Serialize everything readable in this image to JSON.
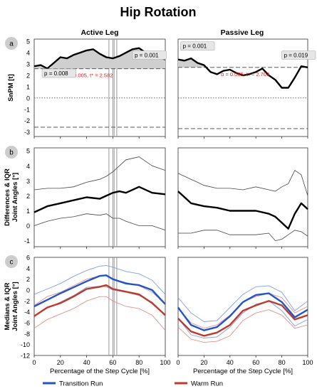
{
  "title": "Hip Rotation",
  "columns": [
    "Active Leg",
    "Passive Leg"
  ],
  "row_badges": [
    "a",
    "b",
    "c"
  ],
  "legend": [
    {
      "label": "Transition Run",
      "color": "#2255cc"
    },
    {
      "label": "Warm Run",
      "color": "#c0392b"
    }
  ],
  "colors": {
    "transition": "#2255cc",
    "transition_light": "#7f9ee8",
    "warm": "#c0392b",
    "warm_light": "#e39189",
    "badge": "#cccccc",
    "shade": "#cfcfcf"
  },
  "x_axis": {
    "label": "Percentage of the Step Cycle [%]",
    "ticks": [
      "0",
      "20",
      "40",
      "60",
      "80",
      "100"
    ],
    "range": [
      0,
      100
    ]
  },
  "chart_data": [
    {
      "row": "a",
      "type": "line",
      "ylabel": "SnPM [t]",
      "ylim": [
        -3.4,
        5.2
      ],
      "yticks": [
        "-3",
        "-2",
        "-1",
        "0",
        "1",
        "2",
        "3",
        "4",
        "5"
      ],
      "ytick_values": [
        -3,
        -2,
        -1,
        0,
        1,
        2,
        3,
        4,
        5
      ],
      "panels": [
        {
          "leg": "Active Leg",
          "threshold": 2.582,
          "threshold_label": "α = 0.005, t* = 2.582",
          "x": [
            0,
            5,
            10,
            15,
            20,
            25,
            30,
            35,
            40,
            45,
            50,
            55,
            60,
            65,
            70,
            75,
            80,
            85,
            90,
            95,
            100
          ],
          "snpm": [
            2.8,
            2.9,
            2.6,
            3.1,
            3.6,
            3.5,
            3.8,
            4.0,
            4.2,
            4.3,
            3.9,
            3.6,
            3.5,
            3.7,
            4.0,
            4.3,
            4.4,
            4.0,
            3.8,
            3.6,
            3.4
          ],
          "clusters": [
            {
              "x0": 0,
              "x1": 9,
              "p_label": "p = 0.008"
            },
            {
              "x0": 12,
              "x1": 100,
              "p_label": "p = 0.001"
            }
          ],
          "vlines": [
            57,
            60,
            61,
            63
          ]
        },
        {
          "leg": "Passive Leg",
          "threshold": 2.703,
          "threshold_label": "α = 0.005, t* = 2.703",
          "x": [
            0,
            5,
            10,
            15,
            20,
            25,
            30,
            35,
            40,
            45,
            50,
            55,
            60,
            65,
            70,
            75,
            80,
            85,
            90,
            95,
            100
          ],
          "snpm": [
            3.4,
            3.3,
            3.5,
            3.1,
            2.9,
            2.3,
            2.1,
            2.4,
            2.5,
            2.2,
            2.0,
            2.1,
            2.3,
            2.6,
            2.0,
            1.6,
            0.9,
            0.9,
            1.8,
            2.8,
            2.7
          ],
          "clusters": [
            {
              "x0": 0,
              "x1": 23,
              "p_label": "p = 0.001"
            },
            {
              "x0": 93,
              "x1": 100,
              "p_label": "p = 0.019"
            }
          ],
          "vlines": []
        }
      ]
    },
    {
      "row": "b",
      "type": "line",
      "ylabel": "Differences & IQR\nJoint Angles [°]",
      "ylim": [
        -1.4,
        5.2
      ],
      "yticks": [
        "-1",
        "0",
        "1",
        "2",
        "3",
        "4",
        "5"
      ],
      "ytick_values": [
        -1,
        0,
        1,
        2,
        3,
        4,
        5
      ],
      "panels": [
        {
          "leg": "Active Leg",
          "x": [
            0,
            10,
            20,
            30,
            40,
            50,
            55,
            60,
            65,
            70,
            80,
            90,
            100
          ],
          "median": [
            0.9,
            1.3,
            1.5,
            1.7,
            1.9,
            1.8,
            2.0,
            2.2,
            2.3,
            2.2,
            2.6,
            2.2,
            2.1
          ],
          "q1": [
            0.0,
            0.3,
            0.5,
            0.6,
            0.8,
            0.7,
            0.8,
            0.5,
            0.5,
            0.3,
            0.0,
            0.0,
            -0.3
          ],
          "q3": [
            2.4,
            2.5,
            2.5,
            2.6,
            2.9,
            3.1,
            3.3,
            3.6,
            4.0,
            4.4,
            4.6,
            4.0,
            3.7
          ],
          "vlines": [
            57,
            60,
            61,
            63
          ]
        },
        {
          "leg": "Passive Leg",
          "x": [
            0,
            10,
            20,
            30,
            40,
            50,
            60,
            70,
            75,
            80,
            85,
            90,
            95,
            100
          ],
          "median": [
            2.3,
            1.5,
            1.3,
            1.2,
            1.0,
            1.0,
            1.0,
            0.8,
            0.6,
            0.2,
            -0.2,
            0.8,
            1.5,
            1.1
          ],
          "q1": [
            -0.5,
            -0.5,
            -0.3,
            -0.3,
            -0.6,
            -0.6,
            -0.6,
            -0.5,
            -1.0,
            -0.9,
            -0.6,
            -0.3,
            -0.4,
            -0.7
          ],
          "q3": [
            3.5,
            3.1,
            2.7,
            2.5,
            2.5,
            2.4,
            2.6,
            2.4,
            2.3,
            2.6,
            2.8,
            3.7,
            3.4,
            2.0
          ],
          "vlines": []
        }
      ]
    },
    {
      "row": "c",
      "type": "line",
      "ylabel": "Medians & IQR\nJoint Angles [°]",
      "ylim": [
        -12,
        6
      ],
      "yticks": [
        "-12",
        "-10",
        "-8",
        "-6",
        "-4",
        "-2",
        "0",
        "2",
        "4",
        "6"
      ],
      "ytick_values": [
        -12,
        -10,
        -8,
        -6,
        -4,
        -2,
        0,
        2,
        4,
        6
      ],
      "panels": [
        {
          "leg": "Active Leg",
          "x": [
            0,
            10,
            20,
            30,
            40,
            50,
            55,
            60,
            70,
            80,
            90,
            100
          ],
          "series": [
            {
              "name": "Transition Run",
              "median": [
                -3.0,
                -1.8,
                -0.6,
                0.5,
                1.6,
                2.6,
                2.7,
                2.0,
                1.2,
                0.9,
                0.0,
                -2.6
              ],
              "q1": [
                -4.8,
                -3.3,
                -2.2,
                -1.0,
                0.5,
                0.7,
                0.6,
                0.0,
                -0.4,
                -1.0,
                -2.2,
                -4.8
              ],
              "q3": [
                -0.8,
                0.2,
                1.2,
                2.5,
                3.6,
                4.4,
                4.5,
                4.2,
                3.4,
                3.0,
                1.8,
                -0.8
              ]
            },
            {
              "name": "Warm Run",
              "median": [
                -4.8,
                -3.2,
                -2.4,
                -1.2,
                0.2,
                0.6,
                0.9,
                0.2,
                -0.3,
                -0.8,
                -2.4,
                -4.6
              ],
              "q1": [
                -7.0,
                -5.4,
                -4.4,
                -3.4,
                -2.0,
                -1.2,
                -1.2,
                -2.0,
                -3.0,
                -3.4,
                -4.6,
                -7.4
              ],
              "q3": [
                -2.8,
                -1.2,
                -0.4,
                0.8,
                2.0,
                2.6,
                2.8,
                2.0,
                1.4,
                0.8,
                -0.4,
                -2.6
              ]
            }
          ],
          "vlines": [
            57,
            60,
            61,
            63
          ]
        },
        {
          "leg": "Passive Leg",
          "x": [
            0,
            10,
            20,
            30,
            40,
            50,
            60,
            70,
            80,
            90,
            100
          ],
          "series": [
            {
              "name": "Transition Run",
              "median": [
                -3.2,
                -6.4,
                -7.4,
                -6.8,
                -4.8,
                -2.2,
                -0.9,
                -0.6,
                -2.2,
                -5.0,
                -3.6
              ],
              "q1": [
                -5.2,
                -8.2,
                -8.8,
                -8.6,
                -6.8,
                -4.2,
                -2.6,
                -2.0,
                -3.8,
                -6.6,
                -5.4
              ],
              "q3": [
                -1.4,
                -4.2,
                -5.8,
                -5.6,
                -3.2,
                -0.8,
                0.6,
                0.8,
                -0.4,
                -3.8,
                -2.0
              ]
            },
            {
              "name": "Warm Run",
              "median": [
                -5.2,
                -7.6,
                -8.4,
                -7.8,
                -6.4,
                -3.8,
                -2.8,
                -2.0,
                -2.8,
                -5.4,
                -4.6
              ],
              "q1": [
                -6.8,
                -9.0,
                -9.6,
                -9.4,
                -8.4,
                -5.6,
                -4.2,
                -3.6,
                -4.6,
                -7.0,
                -6.4
              ],
              "q3": [
                -3.4,
                -6.0,
                -7.0,
                -6.4,
                -4.6,
                -2.2,
                -1.2,
                -0.6,
                -1.4,
                -4.2,
                -3.0
              ]
            }
          ],
          "vlines": []
        }
      ]
    }
  ]
}
